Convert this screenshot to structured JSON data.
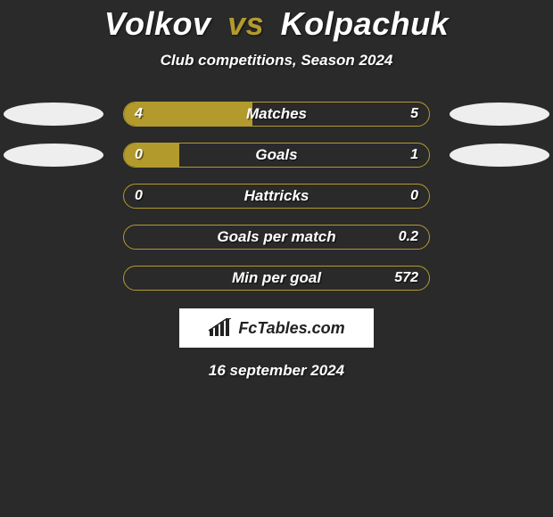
{
  "colors": {
    "background": "#2a2a2a",
    "accent": "#b39a2c",
    "player_left": "#eeeeee",
    "player_right": "#eeeeee",
    "bar_border": "#b39a2c",
    "bar_track": "transparent",
    "text": "#ffffff"
  },
  "title": {
    "left": "Volkov",
    "vs": "vs",
    "right": "Kolpachuk",
    "fontsize": 36
  },
  "subtitle": "Club competitions, Season 2024",
  "ellipse": {
    "width": 112,
    "height": 26
  },
  "bar": {
    "track_width": 344,
    "track_height": 28
  },
  "rows": [
    {
      "label": "Matches",
      "left_val": "4",
      "right_val": "5",
      "left_fill_pct": 42,
      "right_fill_pct": 0,
      "fill_color": "#b39a2c",
      "show_ellipses": true
    },
    {
      "label": "Goals",
      "left_val": "0",
      "right_val": "1",
      "left_fill_pct": 18,
      "right_fill_pct": 0,
      "fill_color": "#b39a2c",
      "show_ellipses": true
    },
    {
      "label": "Hattricks",
      "left_val": "0",
      "right_val": "0",
      "left_fill_pct": 0,
      "right_fill_pct": 0,
      "fill_color": "#b39a2c",
      "show_ellipses": false
    },
    {
      "label": "Goals per match",
      "left_val": "",
      "right_val": "0.2",
      "left_fill_pct": 0,
      "right_fill_pct": 0,
      "fill_color": "#b39a2c",
      "show_ellipses": false
    },
    {
      "label": "Min per goal",
      "left_val": "",
      "right_val": "572",
      "left_fill_pct": 0,
      "right_fill_pct": 0,
      "fill_color": "#b39a2c",
      "show_ellipses": false
    }
  ],
  "logo": {
    "text": "FcTables.com"
  },
  "date": "16 september 2024"
}
